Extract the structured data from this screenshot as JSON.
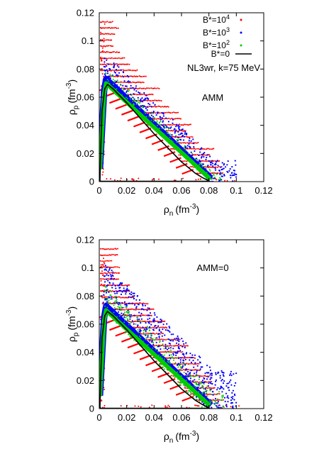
{
  "chart_data": [
    {
      "type": "scatter",
      "annotations": [
        "NL3wr, k=75 MeV",
        "AMM"
      ],
      "xlabel": "ρ",
      "xlabel_sub": "n",
      "xlabel_unit": "(fm",
      "xlabel_sup": "-3",
      "xlabel_close": ")",
      "ylabel": "ρ",
      "ylabel_sub": "p",
      "ylabel_unit": "(fm",
      "ylabel_sup": "-3",
      "ylabel_close": ")",
      "xlim": [
        0,
        0.12
      ],
      "ylim": [
        0,
        0.12
      ],
      "xticks": [
        "0",
        "0.02",
        "0.04",
        "0.06",
        "0.08",
        "0.1",
        "0.12"
      ],
      "yticks": [
        "0",
        "0.02",
        "0.04",
        "0.06",
        "0.08",
        "0.1",
        "0.12"
      ],
      "legend": "top-right",
      "series": [
        {
          "name": "B*=10",
          "name_sup": "4",
          "color": "#ff0000",
          "marker": "dot"
        },
        {
          "name": "B*=10",
          "name_sup": "3",
          "color": "#0000ff",
          "marker": "dot"
        },
        {
          "name": "B*=10",
          "name_sup": "2",
          "color": "#00cc00",
          "marker": "dot"
        },
        {
          "name": "B*=0",
          "name_sup": "",
          "color": "#000000",
          "marker": "line"
        }
      ],
      "spinodal_B0": {
        "x": [
          0.0005,
          0.001,
          0.002,
          0.004,
          0.006,
          0.01,
          0.02,
          0.03,
          0.04,
          0.05,
          0.06,
          0.07,
          0.075,
          0.078,
          0.08,
          0.079,
          0.075,
          0.06,
          0.04,
          0.02,
          0.01,
          0.004,
          0.001,
          0.0005
        ],
        "y": [
          0.001,
          0.02,
          0.05,
          0.066,
          0.069,
          0.066,
          0.056,
          0.045,
          0.034,
          0.024,
          0.014,
          0.006,
          0.003,
          0.0015,
          0.0005,
          0.0002,
          0.0002,
          0.0002,
          0.0002,
          0.0002,
          0.0002,
          0.0002,
          0.0002,
          0.001
        ]
      }
    },
    {
      "type": "scatter",
      "annotations": [
        "AMM=0"
      ],
      "xlabel": "ρ",
      "xlabel_sub": "n",
      "xlabel_unit": "(fm",
      "xlabel_sup": "-3",
      "xlabel_close": ")",
      "ylabel": "ρ",
      "ylabel_sub": "p",
      "ylabel_unit": "(fm",
      "ylabel_sup": "-3",
      "ylabel_close": ")",
      "xlim": [
        0,
        0.12
      ],
      "ylim": [
        0,
        0.12
      ],
      "xticks": [
        "0",
        "0.02",
        "0.04",
        "0.06",
        "0.08",
        "0.1",
        "0.12"
      ],
      "yticks": [
        "0",
        "0.02",
        "0.04",
        "0.06",
        "0.08",
        "0.1",
        "0.12"
      ],
      "series": [
        {
          "name": "B*=10",
          "name_sup": "4",
          "color": "#ff0000",
          "marker": "dot"
        },
        {
          "name": "B*=10",
          "name_sup": "3",
          "color": "#0000ff",
          "marker": "dot"
        },
        {
          "name": "B*=10",
          "name_sup": "2",
          "color": "#00cc00",
          "marker": "dot"
        },
        {
          "name": "B*=0",
          "name_sup": "",
          "color": "#000000",
          "marker": "line"
        }
      ],
      "spinodal_B0": {
        "x": [
          0.0005,
          0.001,
          0.002,
          0.004,
          0.006,
          0.01,
          0.02,
          0.03,
          0.04,
          0.05,
          0.06,
          0.07,
          0.075,
          0.078,
          0.08,
          0.079,
          0.075,
          0.06,
          0.04,
          0.02,
          0.01,
          0.004,
          0.001,
          0.0005
        ],
        "y": [
          0.001,
          0.02,
          0.05,
          0.066,
          0.069,
          0.066,
          0.056,
          0.045,
          0.034,
          0.024,
          0.014,
          0.006,
          0.003,
          0.0015,
          0.0005,
          0.0002,
          0.0002,
          0.0002,
          0.0002,
          0.0002,
          0.0002,
          0.0002,
          0.0002,
          0.001
        ]
      }
    }
  ]
}
